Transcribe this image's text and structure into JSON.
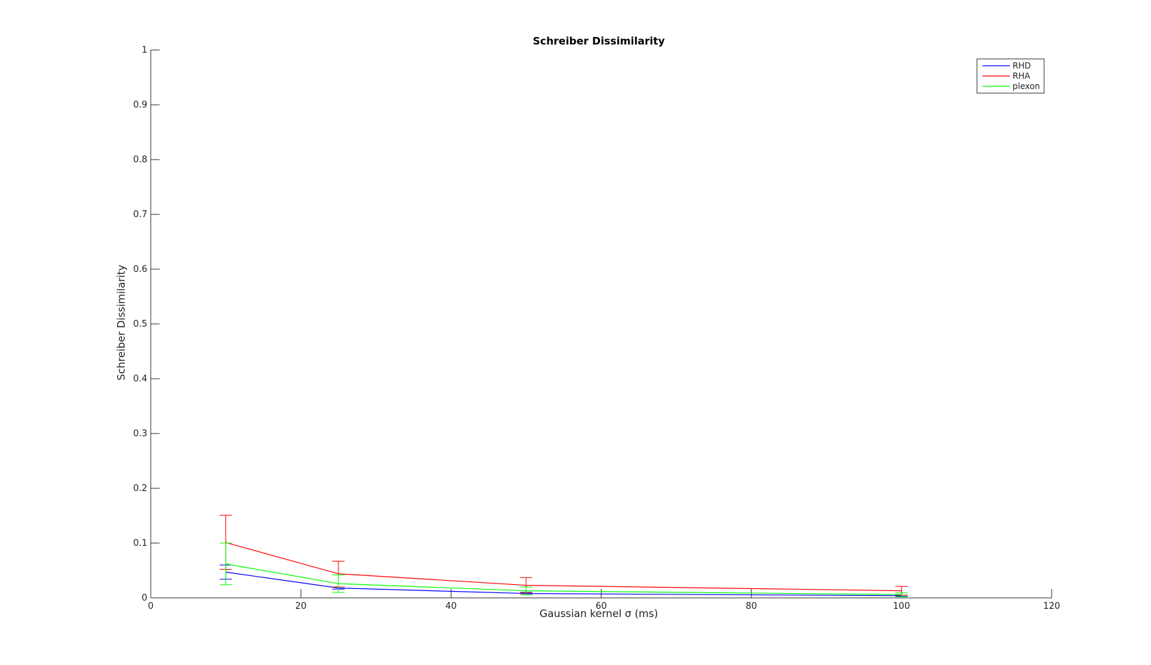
{
  "chart_data": {
    "type": "line",
    "title": "Schreiber Dissimilarity",
    "xlabel": "Gaussian kernel σ (ms)",
    "ylabel": "Schreiber Dissimilarity",
    "xlim": [
      0,
      120
    ],
    "ylim": [
      0,
      1
    ],
    "xticks": [
      0,
      20,
      40,
      60,
      80,
      100,
      120
    ],
    "yticks": [
      0,
      0.1,
      0.2,
      0.3,
      0.4,
      0.5,
      0.6,
      0.7,
      0.8,
      0.9,
      1
    ],
    "xtick_labels": [
      "0",
      "20",
      "40",
      "60",
      "80",
      "100",
      "120"
    ],
    "ytick_labels": [
      "0",
      "0.1",
      "0.2",
      "0.3",
      "0.4",
      "0.5",
      "0.6",
      "0.7",
      "0.8",
      "0.9",
      "1"
    ],
    "grid": false,
    "legend_position": "top-right",
    "x": [
      10,
      25,
      50,
      100
    ],
    "series": [
      {
        "name": "RHD",
        "color": "#0000ff",
        "values": [
          0.047,
          0.018,
          0.008,
          0.004
        ],
        "err_low": [
          0.034,
          0.016,
          0.006,
          0.003
        ],
        "err_high": [
          0.06,
          0.02,
          0.01,
          0.005
        ]
      },
      {
        "name": "RHA",
        "color": "#ff0000",
        "values": [
          0.101,
          0.044,
          0.023,
          0.013
        ],
        "err_low": [
          0.052,
          0.02,
          0.009,
          0.005
        ],
        "err_high": [
          0.151,
          0.067,
          0.037,
          0.021
        ]
      },
      {
        "name": "plexon",
        "color": "#00ff00",
        "values": [
          0.062,
          0.026,
          0.013,
          0.006
        ],
        "err_low": [
          0.024,
          0.01,
          0.006,
          0.002
        ],
        "err_high": [
          0.1,
          0.042,
          0.02,
          0.009
        ]
      }
    ]
  }
}
